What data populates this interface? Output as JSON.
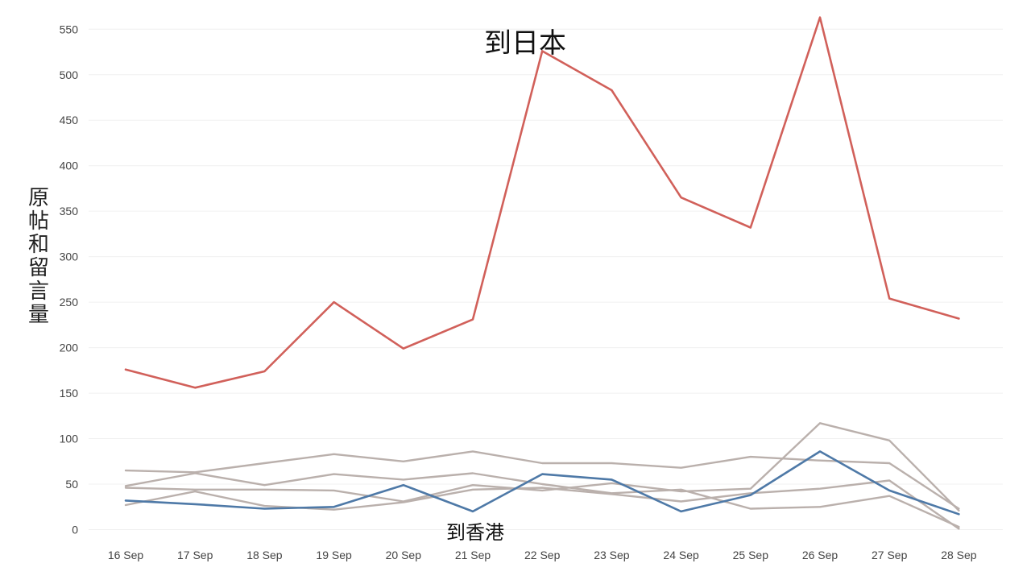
{
  "chart_data": {
    "type": "line",
    "categories": [
      "16 Sep",
      "17 Sep",
      "18 Sep",
      "19 Sep",
      "20 Sep",
      "21 Sep",
      "22 Sep",
      "23 Sep",
      "24 Sep",
      "25 Sep",
      "26 Sep",
      "27 Sep",
      "28 Sep"
    ],
    "ylabel": "原帖和留言量",
    "xlabel": "",
    "ylim": [
      0,
      560
    ],
    "yticks": [
      0,
      50,
      100,
      150,
      200,
      250,
      300,
      350,
      400,
      450,
      500,
      550
    ],
    "grid": true,
    "series": [
      {
        "label": "到日本",
        "color": "#d1605a",
        "highlight": true,
        "values": [
          176,
          156,
          174,
          250,
          199,
          231,
          526,
          483,
          365,
          332,
          563,
          254,
          232
        ]
      },
      {
        "label": "到香港",
        "color": "#4e79a7",
        "highlight": true,
        "values": [
          32,
          28,
          23,
          25,
          49,
          20,
          61,
          55,
          20,
          38,
          86,
          43,
          17
        ]
      },
      {
        "values": [
          65,
          63,
          73,
          83,
          75,
          86,
          73,
          73,
          68,
          80,
          76,
          73,
          23
        ],
        "color": "#bab0ac"
      },
      {
        "values": [
          48,
          62,
          49,
          61,
          55,
          62,
          50,
          40,
          44,
          23,
          25,
          37,
          3
        ],
        "color": "#bab0ac"
      },
      {
        "values": [
          46,
          44,
          44,
          43,
          31,
          49,
          43,
          51,
          42,
          45,
          117,
          98,
          21
        ],
        "color": "#bab0ac"
      },
      {
        "values": [
          27,
          42,
          26,
          22,
          30,
          44,
          46,
          39,
          31,
          40,
          45,
          54,
          1
        ],
        "color": "#bab0ac"
      }
    ]
  }
}
